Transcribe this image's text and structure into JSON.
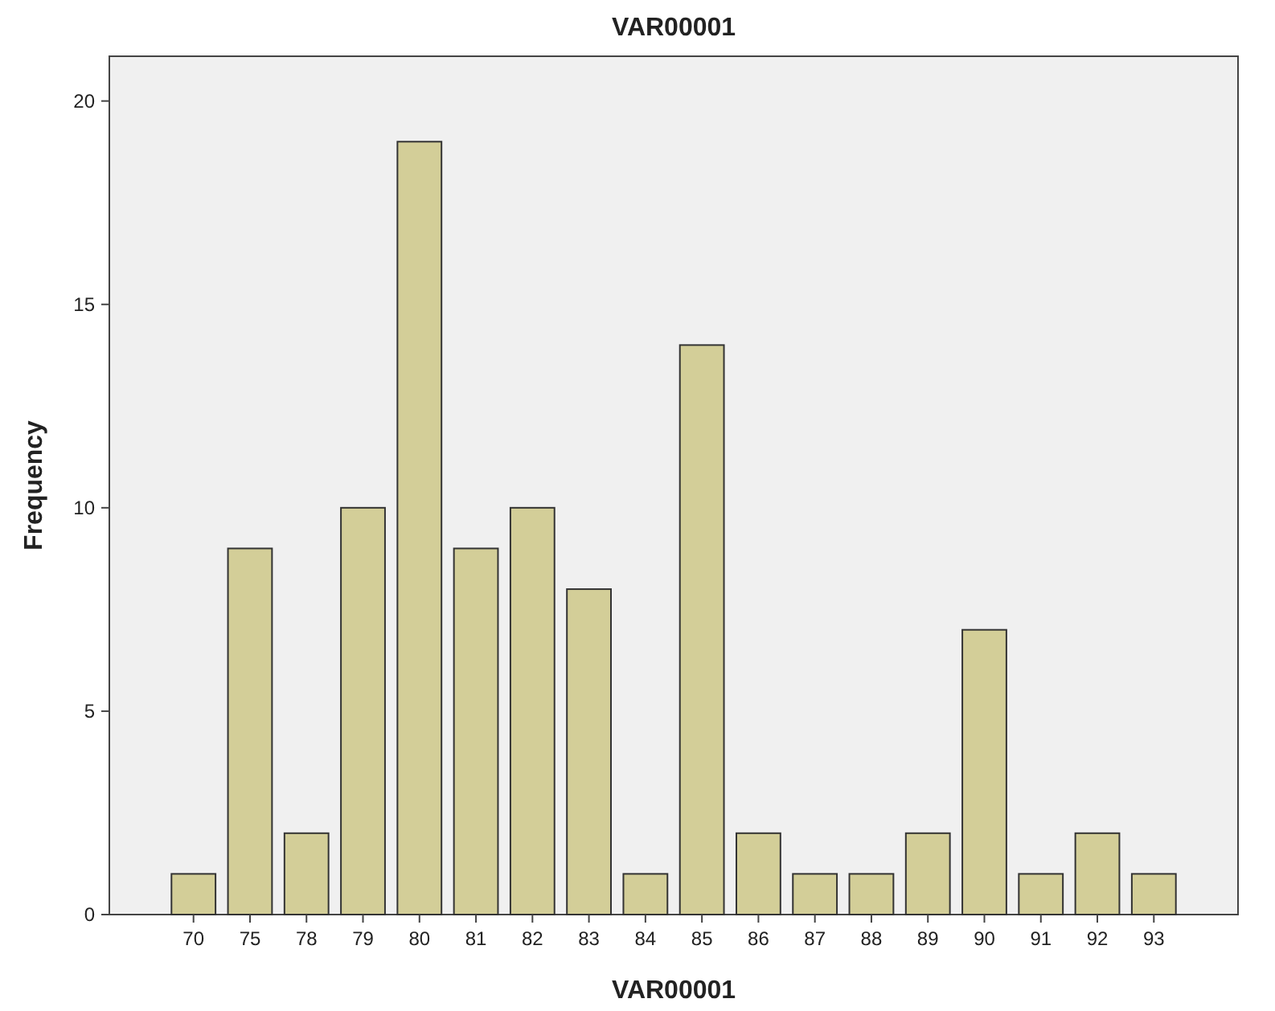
{
  "chart_data": {
    "type": "bar",
    "title": "VAR00001",
    "xlabel": "VAR00001",
    "ylabel": "Frequency",
    "categories": [
      "70",
      "75",
      "78",
      "79",
      "80",
      "81",
      "82",
      "83",
      "84",
      "85",
      "86",
      "87",
      "88",
      "89",
      "90",
      "91",
      "92",
      "93"
    ],
    "values": [
      1,
      9,
      2,
      10,
      19,
      9,
      10,
      8,
      1,
      14,
      2,
      1,
      1,
      2,
      7,
      1,
      2,
      1
    ],
    "color": "#d3ce98",
    "ylim": [
      0,
      21.1
    ],
    "yticks": [
      0,
      5,
      10,
      15,
      20
    ],
    "grid": false
  }
}
